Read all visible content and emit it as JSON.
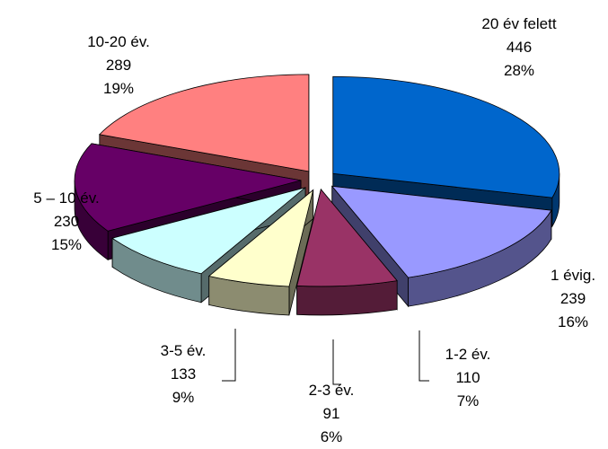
{
  "chart_data": {
    "type": "pie",
    "style": "3d-exploded",
    "slices": [
      {
        "category": "20 év felett",
        "value": 446,
        "value_label": "446",
        "percent_label": "28%",
        "color": "#0066CC"
      },
      {
        "category": "1 évig.",
        "value": 239,
        "value_label": "239",
        "percent_label": "16%",
        "color": "#9999FF"
      },
      {
        "category": "1-2 év.",
        "value": 110,
        "value_label": "110",
        "percent_label": "7%",
        "color": "#993366"
      },
      {
        "category": "2-3 év.",
        "value": 91,
        "value_label": "91",
        "percent_label": "6%",
        "color": "#FFFFCC"
      },
      {
        "category": "3-5 év.",
        "value": 133,
        "value_label": "133",
        "percent_label": "9%",
        "color": "#CCFFFF"
      },
      {
        "category": "5 – 10 év.",
        "value": 230,
        "value_label": "230",
        "percent_label": "15%",
        "color": "#660066"
      },
      {
        "category": "10-20 év.",
        "value": 289,
        "value_label": "289",
        "percent_label": "19%",
        "color": "#FF8080"
      }
    ]
  }
}
